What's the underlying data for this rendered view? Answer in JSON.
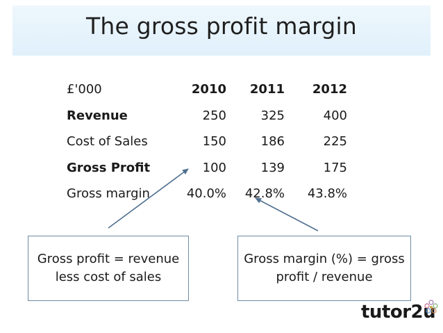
{
  "slide": {
    "title": "The gross profit margin"
  },
  "table": {
    "header": {
      "label": "£'000",
      "years": [
        "2010",
        "2011",
        "2012"
      ]
    },
    "rows": [
      {
        "label": "Revenue",
        "values": [
          "250",
          "325",
          "400"
        ],
        "bold_label": true
      },
      {
        "label": "Cost of Sales",
        "values": [
          "150",
          "186",
          "225"
        ],
        "bold_label": false
      },
      {
        "label": "Gross Profit",
        "values": [
          "100",
          "139",
          "175"
        ],
        "bold_label": true
      },
      {
        "label": "Gross margin",
        "values": [
          "40.0%",
          "42.8%",
          "43.8%"
        ],
        "bold_label": false
      }
    ]
  },
  "callouts": {
    "left": {
      "line1": "Gross profit = revenue",
      "line2": "less cost of sales"
    },
    "right": {
      "line1": "Gross margin (%) = gross",
      "line2": "profit / revenue"
    }
  },
  "branding": {
    "logo_text": "tutor2u"
  },
  "colors": {
    "title_band": "#e0f0fb",
    "callout_border": "#6f8ba3",
    "arrow": "#4f6f8f"
  }
}
